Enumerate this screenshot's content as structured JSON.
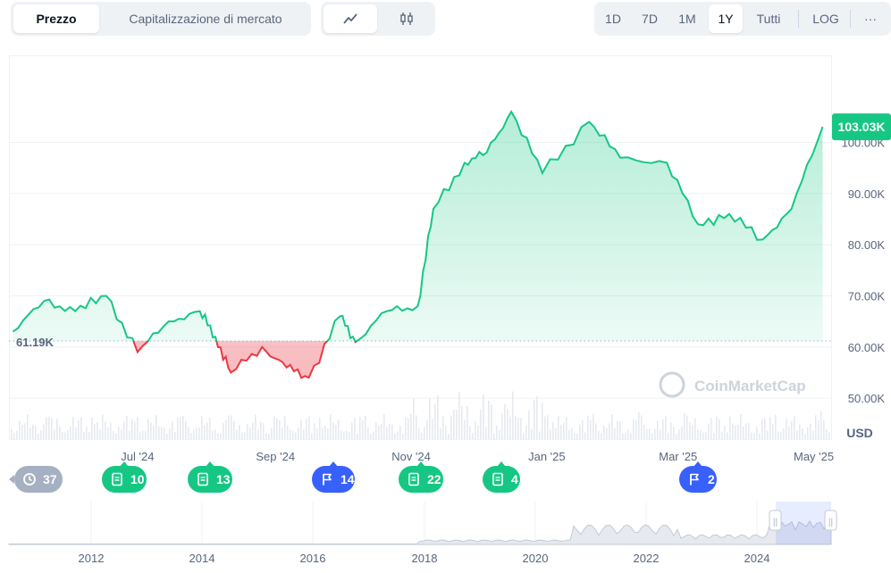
{
  "tabs": [
    {
      "label": "Prezzo",
      "active": true
    },
    {
      "label": "Capitalizzazione di mercato",
      "active": false
    }
  ],
  "chart_type_icons": [
    "line-chart-icon",
    "candlestick-icon"
  ],
  "ranges": [
    "1D",
    "7D",
    "1M",
    "1Y",
    "Tutti"
  ],
  "active_range": "1Y",
  "log_label": "LOG",
  "more_label": "···",
  "watermark": "CoinMarketCap",
  "colors": {
    "up": "#16c784",
    "down": "#ea3943",
    "accent": "#3861fb",
    "grid": "#eff2f5"
  },
  "chart_data": {
    "type": "area",
    "currency_label": "USD",
    "baseline_label": "61.19K",
    "baseline": 61.19,
    "current_label": "103.03K",
    "yticks": [
      50,
      60,
      70,
      80,
      90,
      100
    ],
    "ytick_labels": [
      "50.00K",
      "60.00K",
      "70.00K",
      "80.00K",
      "90.00K",
      "100.00K"
    ],
    "ylim": [
      42,
      117
    ],
    "xticks": [
      "Jul '24",
      "Sep '24",
      "Nov '24",
      "Jan '25",
      "Mar '25",
      "May '25"
    ],
    "x_dates": [
      "2024-05-06",
      "2024-05-20",
      "2024-06-03",
      "2024-06-17",
      "2024-07-01",
      "2024-07-15",
      "2024-07-29",
      "2024-08-05",
      "2024-08-12",
      "2024-08-26",
      "2024-09-06",
      "2024-09-16",
      "2024-09-30",
      "2024-10-07",
      "2024-10-21",
      "2024-11-04",
      "2024-11-11",
      "2024-11-25",
      "2024-12-05",
      "2024-12-16",
      "2024-12-30",
      "2025-01-20",
      "2025-02-03",
      "2025-02-24",
      "2025-03-10",
      "2025-03-24",
      "2025-04-08",
      "2025-04-21",
      "2025-05-05"
    ],
    "values": [
      63,
      69,
      67,
      70,
      59,
      65,
      67,
      62,
      55,
      60,
      56,
      54,
      66,
      61,
      67,
      68,
      87,
      96,
      98,
      106,
      94,
      104,
      97,
      96,
      84,
      86,
      81,
      87,
      103.03
    ],
    "series_up_color": "#16c784",
    "series_down_color": "#ea3943"
  },
  "events": [
    {
      "label": "37",
      "icon": "history-icon",
      "kind": "history"
    },
    {
      "label": "10",
      "icon": "document-icon",
      "kind": "news"
    },
    {
      "label": "13",
      "icon": "document-icon",
      "kind": "news"
    },
    {
      "label": "14",
      "icon": "flag-icon",
      "kind": "event"
    },
    {
      "label": "22",
      "icon": "document-icon",
      "kind": "news"
    },
    {
      "label": "4",
      "icon": "document-icon",
      "kind": "news"
    },
    {
      "label": "2",
      "icon": "flag-icon",
      "kind": "event"
    }
  ],
  "navigator": {
    "years": [
      "2012",
      "2014",
      "2016",
      "2018",
      "2020",
      "2022",
      "2024"
    ],
    "handle_glyph": "||"
  }
}
